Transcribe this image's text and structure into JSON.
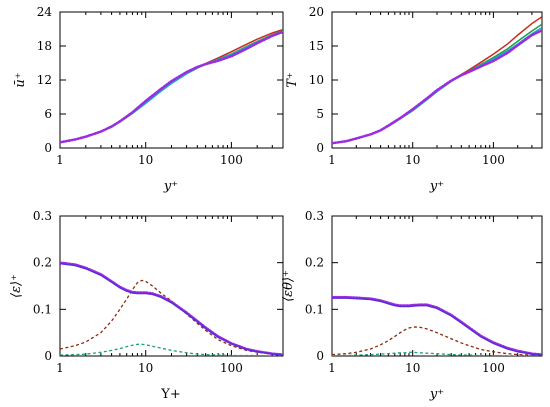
{
  "chart_data": [
    {
      "type": "line",
      "xscale": "log",
      "xlim": [
        1,
        400
      ],
      "ylim": [
        0,
        24
      ],
      "xticks": [
        1,
        10,
        100
      ],
      "xticklabels": [
        "1",
        "10",
        "100"
      ],
      "yticks": [
        0,
        6,
        12,
        18,
        24
      ],
      "yticklabels": [
        "0",
        "6",
        "12",
        "18",
        "24"
      ],
      "xlabel": "y⁺",
      "ylabel": "ū⁺",
      "series": [
        {
          "color": "#cc2a1f",
          "style": "solid",
          "x": [
            1,
            1.5,
            2,
            3,
            4,
            5,
            7,
            10,
            15,
            20,
            30,
            40,
            50,
            70,
            100,
            150,
            200,
            300,
            400
          ],
          "y": [
            1.0,
            1.5,
            2.0,
            2.9,
            3.8,
            4.7,
            6.3,
            8.2,
            10.3,
            11.7,
            13.3,
            14.2,
            14.9,
            15.9,
            17.0,
            18.3,
            19.2,
            20.3,
            20.9
          ]
        },
        {
          "color": "#1c9e4a",
          "style": "solid",
          "x": [
            1,
            1.5,
            2,
            3,
            4,
            5,
            7,
            10,
            15,
            20,
            30,
            40,
            50,
            70,
            100,
            150,
            200,
            300,
            400
          ],
          "y": [
            1.0,
            1.5,
            2.0,
            2.9,
            3.7,
            4.6,
            6.1,
            7.9,
            10.0,
            11.4,
            13.1,
            14.1,
            14.8,
            15.7,
            16.6,
            17.9,
            18.8,
            20.0,
            20.7
          ]
        },
        {
          "color": "#17a9c8",
          "style": "solid",
          "x": [
            1,
            1.5,
            2,
            3,
            4,
            5,
            7,
            10,
            15,
            20,
            30,
            40,
            50,
            70,
            100,
            150,
            200,
            300,
            400
          ],
          "y": [
            1.0,
            1.5,
            2.0,
            2.9,
            3.7,
            4.6,
            6.1,
            7.9,
            10.0,
            11.4,
            13.1,
            14.1,
            14.8,
            15.6,
            16.5,
            17.8,
            18.7,
            19.9,
            20.6
          ]
        },
        {
          "color": "#9b2de0",
          "style": "dotted",
          "x": [
            1,
            1.5,
            2,
            3,
            4,
            5,
            7,
            10,
            15,
            20,
            30,
            40,
            50,
            70,
            100,
            150,
            200,
            300,
            400
          ],
          "y": [
            1.0,
            1.5,
            2.0,
            2.9,
            3.8,
            4.7,
            6.3,
            8.3,
            10.4,
            11.8,
            13.4,
            14.3,
            14.8,
            15.4,
            16.2,
            17.5,
            18.5,
            19.8,
            20.5
          ]
        }
      ]
    },
    {
      "type": "line",
      "xscale": "log",
      "xlim": [
        1,
        400
      ],
      "ylim": [
        0,
        20
      ],
      "xticks": [
        1,
        10,
        100
      ],
      "xticklabels": [
        "1",
        "10",
        "100"
      ],
      "yticks": [
        0,
        5,
        10,
        15,
        20
      ],
      "yticklabels": [
        "0",
        "5",
        "10",
        "15",
        "20"
      ],
      "xlabel": "y⁺",
      "ylabel": "T⁺",
      "series": [
        {
          "color": "#cc2a1f",
          "style": "solid",
          "x": [
            1,
            1.5,
            2,
            3,
            4,
            5,
            7,
            10,
            15,
            20,
            30,
            40,
            50,
            70,
            100,
            150,
            200,
            300,
            400
          ],
          "y": [
            0.7,
            1.0,
            1.4,
            2.0,
            2.6,
            3.2,
            4.3,
            5.6,
            7.2,
            8.4,
            9.9,
            10.8,
            11.5,
            12.6,
            13.8,
            15.3,
            16.6,
            18.3,
            19.3
          ]
        },
        {
          "color": "#1c9e4a",
          "style": "solid",
          "x": [
            1,
            1.5,
            2,
            3,
            4,
            5,
            7,
            10,
            15,
            20,
            30,
            40,
            50,
            70,
            100,
            150,
            200,
            300,
            400
          ],
          "y": [
            0.7,
            1.0,
            1.4,
            2.0,
            2.6,
            3.2,
            4.3,
            5.5,
            7.1,
            8.3,
            9.8,
            10.7,
            11.3,
            12.3,
            13.3,
            14.6,
            15.7,
            17.2,
            18.2
          ]
        },
        {
          "color": "#17a9c8",
          "style": "solid",
          "x": [
            1,
            1.5,
            2,
            3,
            4,
            5,
            7,
            10,
            15,
            20,
            30,
            40,
            50,
            70,
            100,
            150,
            200,
            300,
            400
          ],
          "y": [
            0.7,
            1.0,
            1.4,
            2.0,
            2.6,
            3.2,
            4.3,
            5.5,
            7.1,
            8.3,
            9.8,
            10.7,
            11.3,
            12.2,
            13.1,
            14.3,
            15.3,
            16.8,
            17.7
          ]
        },
        {
          "color": "#9b2de0",
          "style": "dotted",
          "x": [
            1,
            1.5,
            2,
            3,
            4,
            5,
            7,
            10,
            15,
            20,
            30,
            40,
            50,
            70,
            100,
            150,
            200,
            300,
            400
          ],
          "y": [
            0.7,
            1.0,
            1.4,
            2.0,
            2.6,
            3.3,
            4.4,
            5.7,
            7.3,
            8.5,
            9.9,
            10.7,
            11.2,
            12.0,
            12.8,
            14.0,
            15.1,
            16.6,
            17.3
          ]
        }
      ]
    },
    {
      "type": "line",
      "xscale": "log",
      "xlim": [
        1,
        400
      ],
      "ylim": [
        0,
        0.3
      ],
      "xticks": [
        1,
        10,
        100
      ],
      "xticklabels": [
        "1",
        "10",
        "100"
      ],
      "yticks": [
        0,
        0.1,
        0.2,
        0.3
      ],
      "yticklabels": [
        "0",
        "0.1",
        "0.2",
        "0.3"
      ],
      "xlabel": "Y+",
      "ylabel": "⟨ε⟩⁺",
      "series": [
        {
          "color": "#8b2a10",
          "style": "dashed",
          "x": [
            1,
            1.5,
            2,
            3,
            4,
            5,
            6,
            7,
            8,
            9,
            10,
            12,
            15,
            20,
            30,
            40,
            50,
            70,
            100,
            150,
            200,
            300,
            400
          ],
          "y": [
            0.015,
            0.022,
            0.03,
            0.05,
            0.075,
            0.1,
            0.122,
            0.142,
            0.157,
            0.162,
            0.16,
            0.15,
            0.135,
            0.118,
            0.09,
            0.07,
            0.055,
            0.035,
            0.022,
            0.012,
            0.008,
            0.004,
            0.002
          ]
        },
        {
          "color": "#1c9e80",
          "style": "dashed",
          "x": [
            1,
            1.5,
            2,
            3,
            4,
            5,
            6,
            7,
            8,
            9,
            10,
            12,
            15,
            20,
            30,
            40,
            50,
            70,
            100,
            150,
            200,
            300,
            400
          ],
          "y": [
            0.002,
            0.003,
            0.004,
            0.008,
            0.012,
            0.016,
            0.02,
            0.023,
            0.025,
            0.025,
            0.024,
            0.021,
            0.017,
            0.012,
            0.007,
            0.004,
            0.003,
            0.002,
            0.001,
            0.001,
            0.001,
            0.0,
            0.0
          ]
        },
        {
          "color": "#9b2de0",
          "style": "dotted",
          "x": [
            1,
            1.5,
            2,
            3,
            4,
            5,
            6,
            7,
            8,
            9,
            10,
            12,
            15,
            20,
            30,
            40,
            50,
            70,
            100,
            150,
            200,
            300,
            400
          ],
          "y": [
            0.2,
            0.196,
            0.189,
            0.175,
            0.16,
            0.148,
            0.141,
            0.137,
            0.136,
            0.136,
            0.136,
            0.134,
            0.128,
            0.116,
            0.093,
            0.075,
            0.061,
            0.042,
            0.027,
            0.015,
            0.01,
            0.005,
            0.003
          ]
        },
        {
          "color": "#5a2dd8",
          "style": "solid",
          "x": [
            1,
            1.5,
            2,
            3,
            4,
            5,
            6,
            7,
            8,
            9,
            10,
            12,
            15,
            20,
            30,
            40,
            50,
            70,
            100,
            150,
            200,
            300,
            400
          ],
          "y": [
            0.198,
            0.194,
            0.187,
            0.173,
            0.158,
            0.146,
            0.139,
            0.135,
            0.134,
            0.134,
            0.134,
            0.132,
            0.126,
            0.114,
            0.091,
            0.073,
            0.059,
            0.04,
            0.026,
            0.014,
            0.009,
            0.004,
            0.002
          ]
        }
      ]
    },
    {
      "type": "line",
      "xscale": "log",
      "xlim": [
        1,
        400
      ],
      "ylim": [
        0,
        0.3
      ],
      "xticks": [
        1,
        10,
        100
      ],
      "xticklabels": [
        "1",
        "10",
        "100"
      ],
      "yticks": [
        0,
        0.1,
        0.2,
        0.3
      ],
      "yticklabels": [
        "0",
        "0.1",
        "0.2",
        "0.3"
      ],
      "xlabel": "y⁺",
      "ylabel": "⟨εθ⟩⁺",
      "series": [
        {
          "color": "#8b2a10",
          "style": "dashed",
          "x": [
            1,
            1.5,
            2,
            3,
            4,
            5,
            6,
            7,
            8,
            9,
            10,
            12,
            15,
            20,
            30,
            40,
            50,
            70,
            100,
            150,
            200,
            300,
            400
          ],
          "y": [
            0.003,
            0.005,
            0.008,
            0.015,
            0.024,
            0.033,
            0.042,
            0.05,
            0.056,
            0.06,
            0.062,
            0.062,
            0.058,
            0.05,
            0.037,
            0.028,
            0.022,
            0.014,
            0.009,
            0.005,
            0.003,
            0.002,
            0.001
          ]
        },
        {
          "color": "#1c9e80",
          "style": "dashed",
          "x": [
            1,
            1.5,
            2,
            3,
            4,
            5,
            6,
            7,
            8,
            9,
            10,
            12,
            15,
            20,
            30,
            40,
            50,
            70,
            100,
            150,
            200,
            300,
            400
          ],
          "y": [
            0.001,
            0.001,
            0.002,
            0.003,
            0.004,
            0.005,
            0.006,
            0.007,
            0.007,
            0.008,
            0.008,
            0.007,
            0.006,
            0.005,
            0.003,
            0.002,
            0.002,
            0.001,
            0.001,
            0.0,
            0.0,
            0.0,
            0.0
          ]
        },
        {
          "color": "#9b2de0",
          "style": "dotted",
          "x": [
            1,
            1.5,
            2,
            3,
            4,
            5,
            6,
            7,
            8,
            9,
            10,
            12,
            15,
            20,
            30,
            40,
            50,
            70,
            100,
            150,
            200,
            300,
            400
          ],
          "y": [
            0.126,
            0.126,
            0.125,
            0.123,
            0.119,
            0.114,
            0.11,
            0.108,
            0.108,
            0.108,
            0.109,
            0.11,
            0.11,
            0.104,
            0.088,
            0.073,
            0.061,
            0.043,
            0.029,
            0.017,
            0.011,
            0.005,
            0.003
          ]
        },
        {
          "color": "#5a2dd8",
          "style": "solid",
          "x": [
            1,
            1.5,
            2,
            3,
            4,
            5,
            6,
            7,
            8,
            9,
            10,
            12,
            15,
            20,
            30,
            40,
            50,
            70,
            100,
            150,
            200,
            300,
            400
          ],
          "y": [
            0.124,
            0.124,
            0.123,
            0.121,
            0.117,
            0.112,
            0.108,
            0.106,
            0.106,
            0.106,
            0.107,
            0.108,
            0.108,
            0.102,
            0.086,
            0.071,
            0.059,
            0.041,
            0.027,
            0.015,
            0.009,
            0.004,
            0.002
          ]
        }
      ]
    }
  ]
}
